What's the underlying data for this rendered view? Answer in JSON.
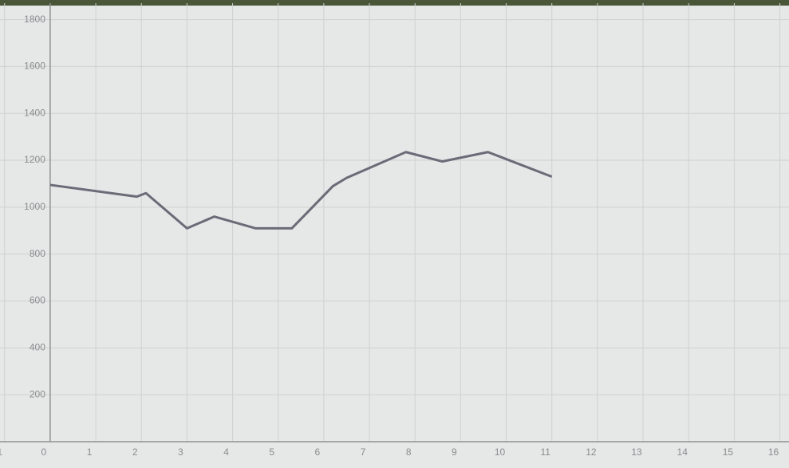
{
  "chart_data": {
    "type": "line",
    "x": [
      0,
      1.9,
      2.1,
      3,
      3.6,
      4.5,
      5.3,
      6.2,
      6.5,
      7.8,
      8.6,
      9.6,
      11
    ],
    "values": [
      1095,
      1045,
      1060,
      910,
      960,
      910,
      910,
      1090,
      1125,
      1235,
      1195,
      1235,
      1130
    ],
    "color": "#6b6b78",
    "xlim": [
      -1.1,
      16.2
    ],
    "ylim": [
      0,
      1870
    ],
    "xticks": [
      -1,
      0,
      1,
      2,
      3,
      4,
      5,
      6,
      7,
      8,
      9,
      10,
      11,
      12,
      13,
      14,
      15,
      16
    ],
    "yticks": [
      200,
      400,
      600,
      800,
      1000,
      1200,
      1400,
      1600,
      1800
    ],
    "grid": true
  }
}
